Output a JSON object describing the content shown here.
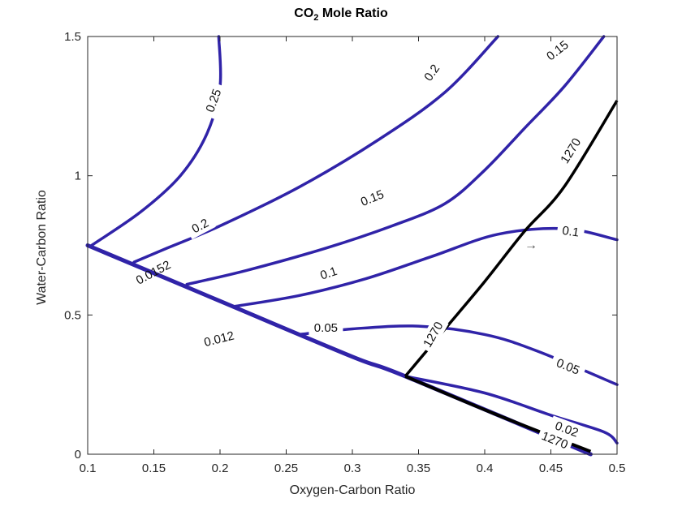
{
  "chart_data": {
    "type": "contour",
    "title_main": "CO",
    "title_sub": "2",
    "title_rest": " Mole Ratio",
    "xlabel": "Oxygen-Carbon Ratio",
    "ylabel": "Water-Carbon Ratio",
    "xlim": [
      0.1,
      0.5
    ],
    "ylim": [
      0,
      1.5
    ],
    "xticks": [
      "0.1",
      "0.15",
      "0.2",
      "0.25",
      "0.3",
      "0.35",
      "0.4",
      "0.45",
      "0.5"
    ],
    "yticks": [
      "0",
      "0.5",
      "1",
      "1.5"
    ],
    "grid": false,
    "colors": {
      "contour": "#3023a8",
      "temperature": "#000000",
      "axis": "#262626"
    },
    "glyph": "→",
    "mole_ratio_contours": [
      {
        "level": 0.25,
        "label": "0.25",
        "points": [
          [
            0.103,
            0.75
          ],
          [
            0.14,
            0.87
          ],
          [
            0.17,
            1.0
          ],
          [
            0.19,
            1.15
          ],
          [
            0.2,
            1.32
          ],
          [
            0.199,
            1.5
          ]
        ]
      },
      {
        "level": 0.2,
        "label": "0.2",
        "points": [
          [
            0.135,
            0.69
          ],
          [
            0.16,
            0.74
          ],
          [
            0.2,
            0.82
          ],
          [
            0.26,
            0.96
          ],
          [
            0.32,
            1.13
          ],
          [
            0.37,
            1.3
          ],
          [
            0.41,
            1.5
          ]
        ]
      },
      {
        "level": 0.15,
        "label": "0.15",
        "points": [
          [
            0.175,
            0.61
          ],
          [
            0.22,
            0.66
          ],
          [
            0.28,
            0.74
          ],
          [
            0.33,
            0.82
          ],
          [
            0.37,
            0.9
          ],
          [
            0.4,
            1.02
          ],
          [
            0.43,
            1.17
          ],
          [
            0.46,
            1.32
          ],
          [
            0.49,
            1.5
          ]
        ]
      },
      {
        "level": 0.1,
        "label": "0.1",
        "points": [
          [
            0.21,
            0.53
          ],
          [
            0.26,
            0.57
          ],
          [
            0.31,
            0.63
          ],
          [
            0.36,
            0.71
          ],
          [
            0.41,
            0.79
          ],
          [
            0.46,
            0.81
          ],
          [
            0.5,
            0.77
          ]
        ]
      },
      {
        "level": 0.05,
        "label": "0.05",
        "points": [
          [
            0.26,
            0.43
          ],
          [
            0.3,
            0.45
          ],
          [
            0.35,
            0.46
          ],
          [
            0.4,
            0.43
          ],
          [
            0.44,
            0.37
          ],
          [
            0.5,
            0.25
          ]
        ]
      },
      {
        "level": 0.02,
        "label": "0.02",
        "points": [
          [
            0.34,
            0.28
          ],
          [
            0.4,
            0.22
          ],
          [
            0.45,
            0.14
          ],
          [
            0.49,
            0.08
          ],
          [
            0.5,
            0.04
          ]
        ]
      }
    ],
    "temperature_contour": {
      "level": 1270,
      "label": "1270",
      "points": [
        [
          0.34,
          0.28
        ],
        [
          0.37,
          0.45
        ],
        [
          0.4,
          0.62
        ],
        [
          0.43,
          0.8
        ],
        [
          0.46,
          0.96
        ],
        [
          0.5,
          1.27
        ]
      ],
      "boundary_points": [
        [
          0.34,
          0.28
        ],
        [
          0.41,
          0.14
        ],
        [
          0.48,
          0.01
        ]
      ]
    },
    "boundary_line": [
      [
        0.1,
        0.75
      ],
      [
        0.2,
        0.55
      ],
      [
        0.3,
        0.35
      ],
      [
        0.34,
        0.28
      ],
      [
        0.48,
        0.0
      ]
    ],
    "boundary_labels": [
      "0.0152",
      "0.012"
    ],
    "curve_labels": [
      {
        "text": "0.25",
        "at": [
          0.195,
          1.27
        ],
        "angle": -70
      },
      {
        "text": "0.2",
        "at": [
          0.36,
          1.37
        ],
        "angle": -55
      },
      {
        "text": "0.15",
        "at": [
          0.455,
          1.45
        ],
        "angle": -38
      },
      {
        "text": "0.2",
        "at": [
          0.185,
          0.82
        ],
        "angle": -28
      },
      {
        "text": "0.15",
        "at": [
          0.315,
          0.92
        ],
        "angle": -22
      },
      {
        "text": "0.1",
        "at": [
          0.282,
          0.65
        ],
        "angle": -18
      },
      {
        "text": "0.1",
        "at": [
          0.465,
          0.8
        ],
        "angle": 8
      },
      {
        "text": "0.05",
        "at": [
          0.28,
          0.455
        ],
        "angle": 0
      },
      {
        "text": "0.05",
        "at": [
          0.463,
          0.315
        ],
        "angle": 22
      },
      {
        "text": "0.02",
        "at": [
          0.462,
          0.09
        ],
        "angle": 20
      },
      {
        "text": "1270",
        "at": [
          0.465,
          1.09
        ],
        "angle": -58
      },
      {
        "text": "1270",
        "at": [
          0.361,
          0.43
        ],
        "angle": -60
      },
      {
        "text": "1270",
        "at": [
          0.453,
          0.05
        ],
        "angle": 22
      }
    ]
  }
}
